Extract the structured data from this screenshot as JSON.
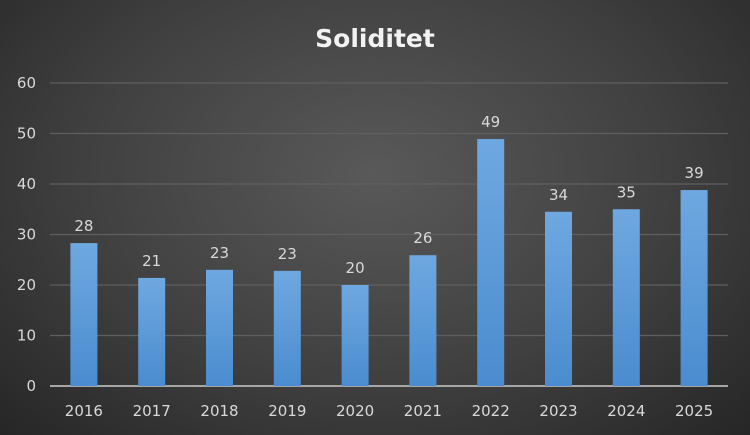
{
  "chart_data": {
    "type": "bar",
    "title": "Soliditet",
    "xlabel": "",
    "ylabel": "",
    "categories": [
      "2016",
      "2017",
      "2018",
      "2019",
      "2020",
      "2021",
      "2022",
      "2023",
      "2024",
      "2025"
    ],
    "values": [
      28.3,
      21.4,
      23.0,
      22.8,
      20.0,
      25.9,
      48.9,
      34.5,
      35.0,
      38.8
    ],
    "data_labels": [
      "28",
      "21",
      "23",
      "23",
      "20",
      "26",
      "49",
      "34",
      "35",
      "39"
    ],
    "ylim": [
      0,
      60
    ],
    "yticks": [
      "0",
      "10",
      "20",
      "30",
      "40",
      "50",
      "60"
    ],
    "grid": true,
    "legend": "none",
    "colors": {
      "bar_top": "#6fa8e0",
      "bar_bottom": "#4a8ccf",
      "grid": "#5f5f5f",
      "axis": "#a6a6a6"
    }
  }
}
